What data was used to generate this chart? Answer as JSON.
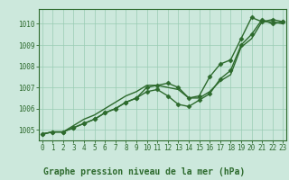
{
  "xlabel": "Graphe pression niveau de la mer (hPa)",
  "hours": [
    0,
    1,
    2,
    3,
    4,
    5,
    6,
    7,
    8,
    9,
    10,
    11,
    12,
    13,
    14,
    15,
    16,
    17,
    18,
    19,
    20,
    21,
    22,
    23
  ],
  "line1": [
    1004.8,
    1004.9,
    1004.9,
    1005.1,
    1005.3,
    1005.5,
    1005.8,
    1006.0,
    1006.3,
    1006.5,
    1007.0,
    1007.1,
    1007.2,
    1007.0,
    1006.5,
    1006.6,
    1007.5,
    1008.1,
    1008.3,
    1009.3,
    1010.3,
    1010.1,
    1010.2,
    1010.1
  ],
  "line2": [
    1004.8,
    1004.9,
    1004.9,
    1005.1,
    1005.3,
    1005.5,
    1005.8,
    1006.0,
    1006.3,
    1006.5,
    1006.8,
    1006.9,
    1006.6,
    1006.2,
    1006.1,
    1006.4,
    1006.7,
    1007.4,
    1007.8,
    1009.0,
    1009.5,
    1010.2,
    1010.0,
    1010.1
  ],
  "line3": [
    1004.8,
    1004.9,
    1004.9,
    1005.2,
    1005.5,
    1005.7,
    1006.0,
    1006.3,
    1006.6,
    1006.8,
    1007.1,
    1007.1,
    1007.0,
    1006.9,
    1006.5,
    1006.5,
    1006.8,
    1007.3,
    1007.6,
    1008.9,
    1009.3,
    1010.1,
    1010.1,
    1010.0
  ],
  "line_color": "#2d6a2d",
  "bg_color": "#cce8dc",
  "grid_color": "#99ccb3",
  "ylim": [
    1004.5,
    1010.7
  ],
  "yticks": [
    1005,
    1006,
    1007,
    1008,
    1009,
    1010
  ],
  "xlim": [
    -0.3,
    23.3
  ],
  "marker": "D",
  "markersize": 2.5,
  "linewidth": 1.0,
  "tick_fontsize": 5.5,
  "xlabel_fontsize": 7.0
}
